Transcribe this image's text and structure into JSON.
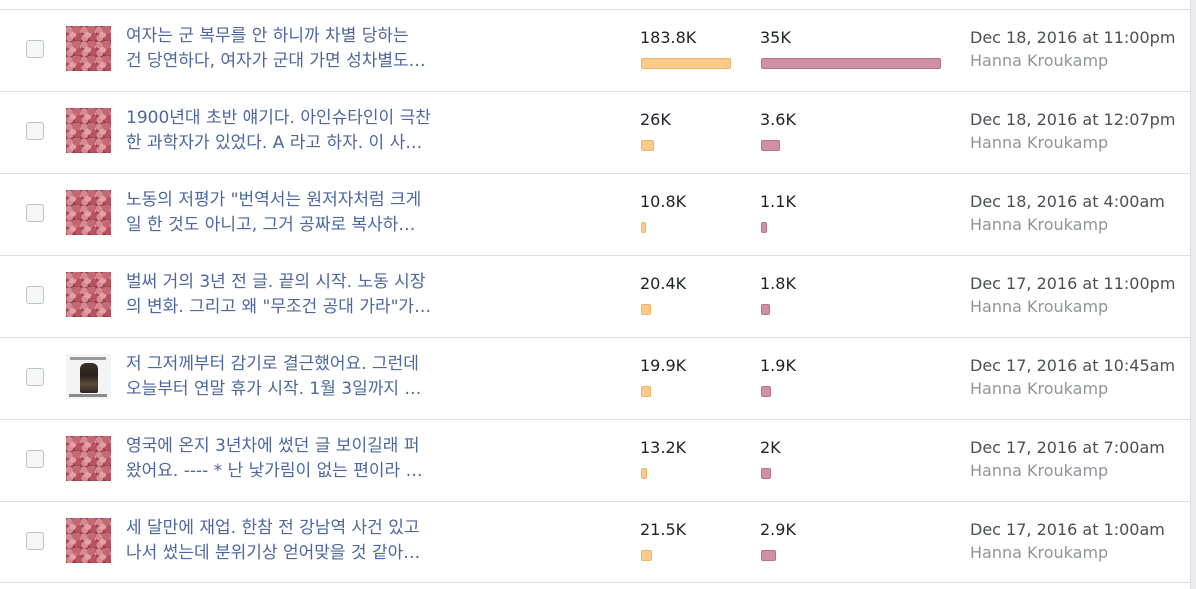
{
  "colors": {
    "link": "#4b67a1",
    "reach_bar": "#fecb8a",
    "engagement_bar": "#d090a3",
    "text": "#1d2129",
    "muted": "#90949c"
  },
  "max_values": {
    "reach": 183.8,
    "engagement": 35
  },
  "posts": [
    {
      "title_line1": "여자는 군 복무를 안 하니까 차별 당하는",
      "title_line2": "건 당연하다, 여자가 군대 가면 성차별도…",
      "thumbnail": "floral-thumbnail",
      "reach": "183.8K",
      "reach_value": 183.8,
      "engagement": "35K",
      "engagement_value": 35,
      "date": "Dec 18, 2016 at 11:00pm",
      "author": "Hanna Kroukamp"
    },
    {
      "title_line1": "1900년대 초반 얘기다. 아인슈타인이 극찬",
      "title_line2": "한 과학자가 있었다. A 라고 하자. 이 사…",
      "thumbnail": "floral-thumbnail",
      "reach": "26K",
      "reach_value": 26,
      "engagement": "3.6K",
      "engagement_value": 3.6,
      "date": "Dec 18, 2016 at 12:07pm",
      "author": "Hanna Kroukamp"
    },
    {
      "title_line1": "노동의 저평가 \"번역서는 원저자처럼 크게",
      "title_line2": "일 한 것도 아니고, 그거 공짜로 복사하…",
      "thumbnail": "floral-thumbnail",
      "reach": "10.8K",
      "reach_value": 10.8,
      "engagement": "1.1K",
      "engagement_value": 1.1,
      "date": "Dec 18, 2016 at 4:00am",
      "author": "Hanna Kroukamp"
    },
    {
      "title_line1": "벌써 거의 3년 전 글. 끝의 시작. 노동 시장",
      "title_line2": "의 변화. 그리고 왜 \"무조건 공대 가라\"가…",
      "thumbnail": "floral-thumbnail",
      "reach": "20.4K",
      "reach_value": 20.4,
      "engagement": "1.8K",
      "engagement_value": 1.8,
      "date": "Dec 17, 2016 at 11:00pm",
      "author": "Hanna Kroukamp"
    },
    {
      "title_line1": "저 그저께부터 감기로 결근했어요. 그런데",
      "title_line2": "오늘부터 연말 휴가 시작. 1월 3일까지 …",
      "thumbnail": "photo-thumbnail",
      "reach": "19.9K",
      "reach_value": 19.9,
      "engagement": "1.9K",
      "engagement_value": 1.9,
      "date": "Dec 17, 2016 at 10:45am",
      "author": "Hanna Kroukamp"
    },
    {
      "title_line1": "영국에 온지 3년차에 썼던 글 보이길래 퍼",
      "title_line2": "왔어요. ---- * 난 낯가림이 없는 편이라 …",
      "thumbnail": "floral-thumbnail",
      "reach": "13.2K",
      "reach_value": 13.2,
      "engagement": "2K",
      "engagement_value": 2,
      "date": "Dec 17, 2016 at 7:00am",
      "author": "Hanna Kroukamp"
    },
    {
      "title_line1": "세 달만에 재업. 한참 전 강남역 사건 있고",
      "title_line2": "나서 썼는데 분위기상 얻어맞을 것 같아…",
      "thumbnail": "floral-thumbnail",
      "reach": "21.5K",
      "reach_value": 21.5,
      "engagement": "2.9K",
      "engagement_value": 2.9,
      "date": "Dec 17, 2016 at 1:00am",
      "author": "Hanna Kroukamp"
    }
  ]
}
